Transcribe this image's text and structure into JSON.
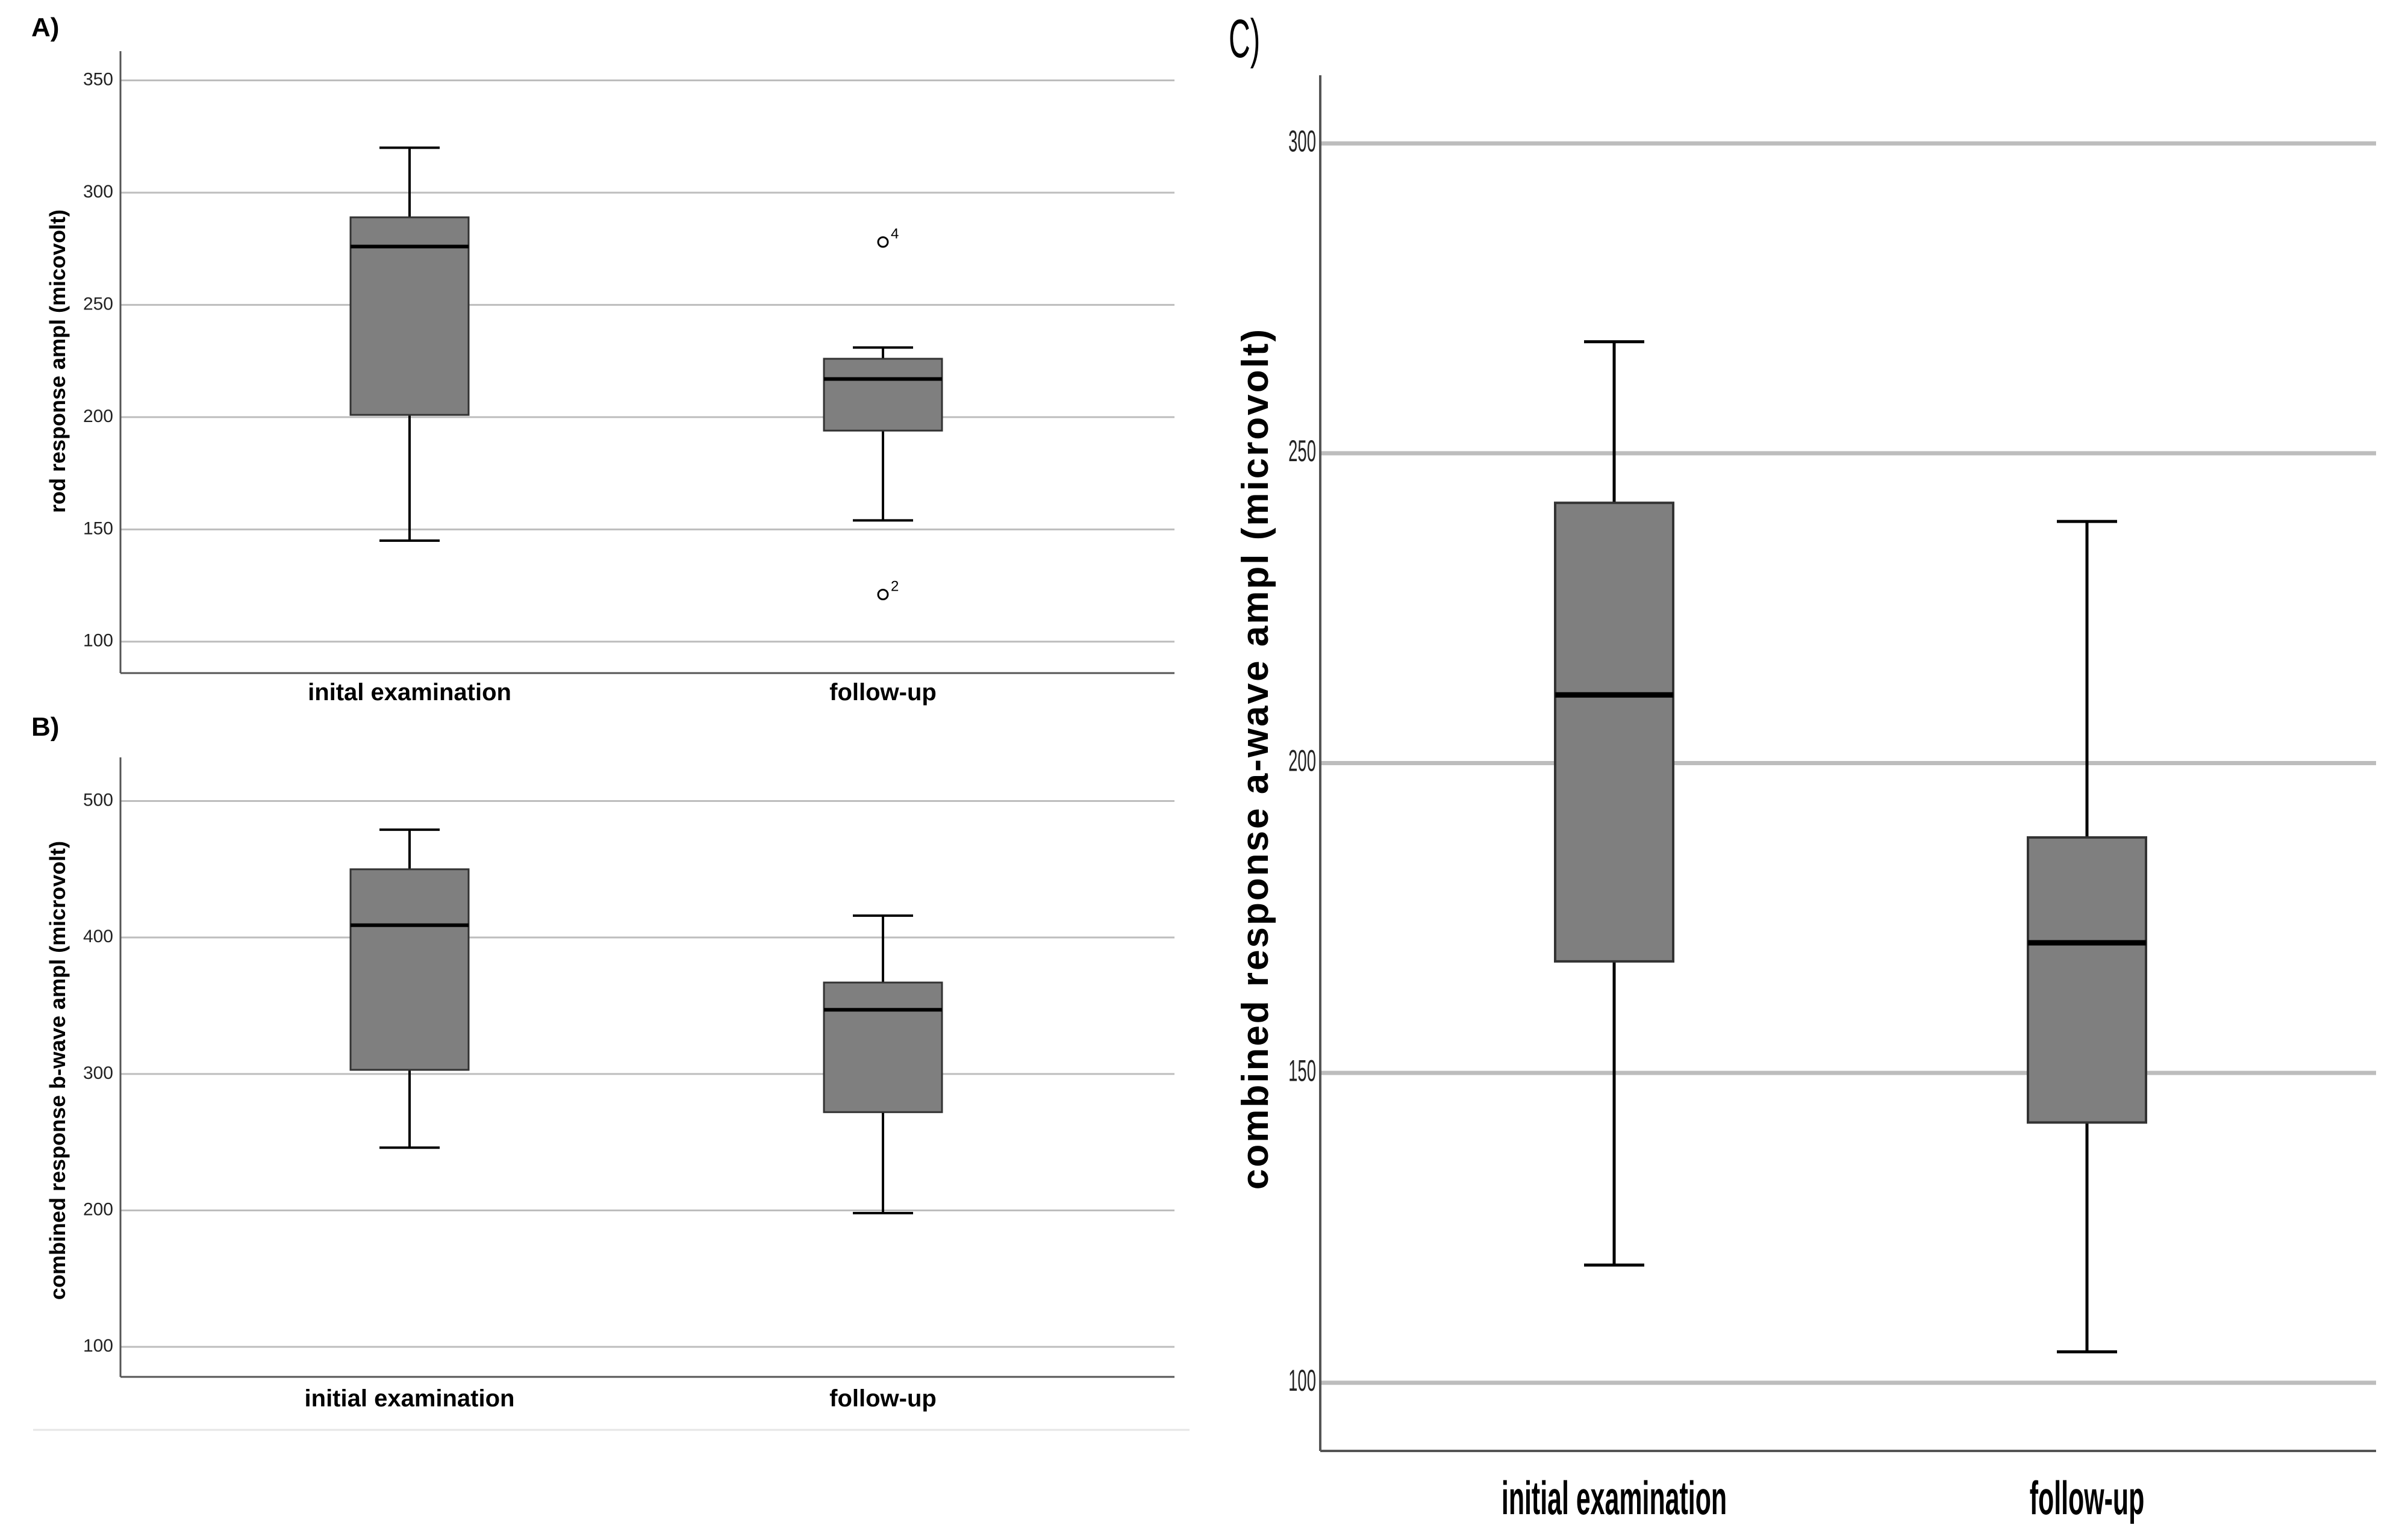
{
  "chart_data": [
    {
      "panel": "A)",
      "type": "box",
      "categories": [
        "inital examination",
        "follow-up"
      ],
      "ylabel": "rod response ampl (micovolt)",
      "ylim": [
        86,
        363
      ],
      "yticks": [
        100,
        150,
        200,
        250,
        300,
        350
      ],
      "grid": true,
      "boxes": [
        {
          "whisker_low": 145,
          "q1": 201,
          "median": 276,
          "q3": 289,
          "whisker_high": 320,
          "outliers": []
        },
        {
          "whisker_low": 154,
          "q1": 194,
          "median": 217,
          "q3": 226,
          "whisker_high": 231,
          "outliers": [
            {
              "value": 278,
              "label": "4"
            },
            {
              "value": 121,
              "label": "2"
            }
          ]
        }
      ]
    },
    {
      "panel": "B)",
      "type": "box",
      "categories": [
        "initial examination",
        "follow-up"
      ],
      "ylabel": "combined response b-wave ampl (microvolt)",
      "ylim": [
        78,
        532
      ],
      "yticks": [
        100,
        200,
        300,
        400,
        500
      ],
      "grid": true,
      "boxes": [
        {
          "whisker_low": 246,
          "q1": 303,
          "median": 409,
          "q3": 450,
          "whisker_high": 479,
          "outliers": []
        },
        {
          "whisker_low": 198,
          "q1": 272,
          "median": 347,
          "q3": 367,
          "whisker_high": 416,
          "outliers": []
        }
      ]
    },
    {
      "panel": "C)",
      "type": "box",
      "categories": [
        "initial examination",
        "follow-up"
      ],
      "ylabel": "combined response a-wave ampl (microvolt)",
      "ylim": [
        89,
        311
      ],
      "yticks": [
        100,
        150,
        200,
        250,
        300
      ],
      "grid": true,
      "boxes": [
        {
          "whisker_low": 119,
          "q1": 168,
          "median": 211,
          "q3": 242,
          "whisker_high": 268,
          "outliers": []
        },
        {
          "whisker_low": 105,
          "q1": 142,
          "median": 171,
          "q3": 188,
          "whisker_high": 239,
          "outliers": []
        }
      ]
    }
  ],
  "colors": {
    "box_fill": "#7f7f7f",
    "box_stroke": "#333333",
    "median": "#000000",
    "grid": "#bdbdbd",
    "axis": "#555555"
  }
}
